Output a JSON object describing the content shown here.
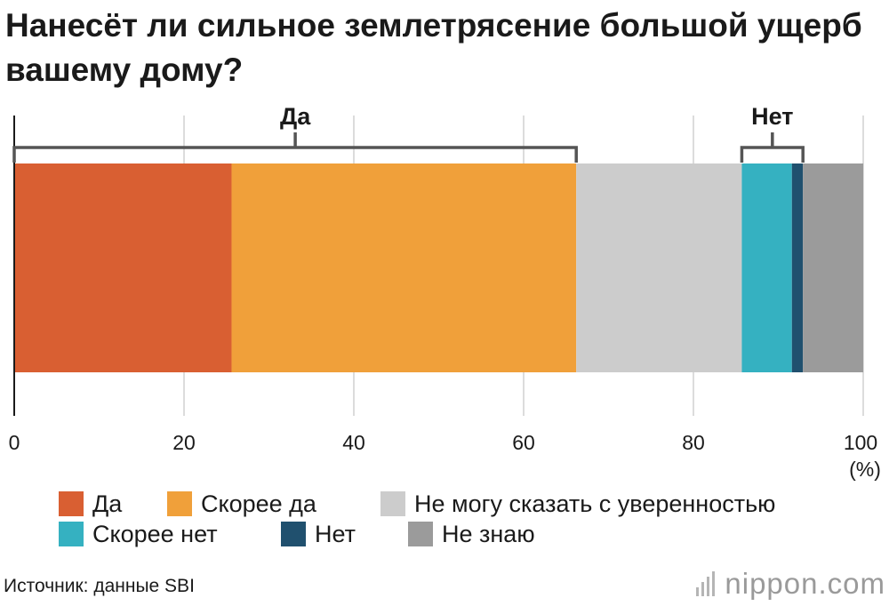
{
  "title": "Нанесёт ли сильное землетрясение большой ущерб вашему дому?",
  "source": "Источник: данные SBI",
  "brand": "nippon.com",
  "chart_data": {
    "type": "bar",
    "orientation": "horizontal-stacked",
    "xlim": [
      0,
      100
    ],
    "xticks": [
      "0",
      "20",
      "40",
      "60",
      "80",
      "100"
    ],
    "unit_label": "(%)",
    "grid": true,
    "legend_position": "bottom",
    "series": [
      {
        "name": "Да",
        "value": 25.6,
        "color": "#d95f32"
      },
      {
        "name": "Скорее да",
        "value": 40.6,
        "color": "#f0a03a"
      },
      {
        "name": "Не могу сказать с уверенностью",
        "value": 19.5,
        "color": "#cccccc"
      },
      {
        "name": "Скорее нет",
        "value": 5.9,
        "color": "#35b1c1"
      },
      {
        "name": "Нет",
        "value": 1.3,
        "color": "#20506e"
      },
      {
        "name": "Не знаю",
        "value": 7.1,
        "color": "#9b9b9b"
      }
    ],
    "groups": [
      {
        "label": "Да",
        "from": 0,
        "to": 66.2
      },
      {
        "label": "Нет",
        "from": 85.7,
        "to": 92.9
      }
    ]
  }
}
